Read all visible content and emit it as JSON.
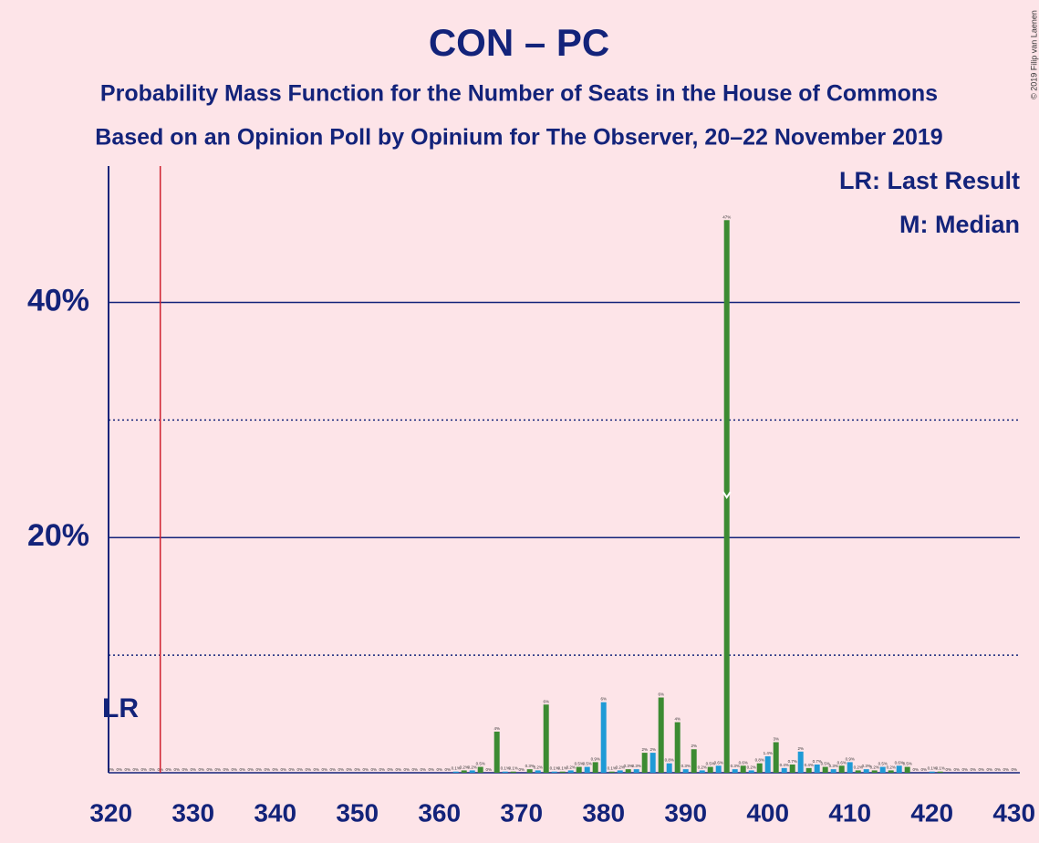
{
  "chart_data": {
    "type": "bar",
    "title": "CON – PC",
    "subtitle": "Probability Mass Function for the Number of Seats in the House of Commons",
    "subtitle2": "Based on an Opinion Poll by Opinium for The Observer, 20–22 November 2019",
    "credit": "© 2019 Filip van Laenen",
    "legend": [
      "LR: Last Result",
      "M: Median"
    ],
    "last_result": {
      "value": 326,
      "label": "LR",
      "color": "#d0202e"
    },
    "median": 395,
    "colors": [
      "#1e9ad6",
      "#3c8b32"
    ],
    "x": [
      320,
      321,
      322,
      323,
      324,
      325,
      326,
      327,
      328,
      329,
      330,
      331,
      332,
      333,
      334,
      335,
      336,
      337,
      338,
      339,
      340,
      341,
      342,
      343,
      344,
      345,
      346,
      347,
      348,
      349,
      350,
      351,
      352,
      353,
      354,
      355,
      356,
      357,
      358,
      359,
      360,
      361,
      362,
      363,
      364,
      365,
      366,
      367,
      368,
      369,
      370,
      371,
      372,
      373,
      374,
      375,
      376,
      377,
      378,
      379,
      380,
      381,
      382,
      383,
      384,
      385,
      386,
      387,
      388,
      389,
      390,
      391,
      392,
      393,
      394,
      395,
      396,
      397,
      398,
      399,
      400,
      401,
      402,
      403,
      404,
      405,
      406,
      407,
      408,
      409,
      410,
      411,
      412,
      413,
      414,
      415,
      416,
      417,
      418,
      419,
      420,
      421,
      422,
      423,
      424,
      425,
      426,
      427,
      428,
      429,
      430
    ],
    "values": [
      0,
      0,
      0,
      0,
      0,
      0,
      0,
      0,
      0,
      0,
      0,
      0,
      0,
      0,
      0,
      0,
      0,
      0,
      0,
      0,
      0,
      0,
      0,
      0,
      0,
      0,
      0,
      0,
      0,
      0,
      0,
      0,
      0,
      0,
      0,
      0,
      0,
      0,
      0,
      0,
      0,
      0,
      0.1,
      0.2,
      0.2,
      0.5,
      0,
      3.5,
      0.1,
      0.1,
      0,
      0.3,
      0.2,
      5.8,
      0.1,
      0.1,
      0.2,
      0.5,
      0.5,
      0.9,
      6,
      0.1,
      0.2,
      0.3,
      0.3,
      1.7,
      1.7,
      6.4,
      0.8,
      4.3,
      0.3,
      2,
      0.2,
      0.5,
      0.6,
      47,
      0.3,
      0.6,
      0.2,
      0.8,
      1.4,
      2.6,
      0.4,
      0.7,
      1.8,
      0.4,
      0.7,
      0.5,
      0.3,
      0.6,
      0.9,
      0.2,
      0.3,
      0.2,
      0.5,
      0.2,
      0.6,
      0.5,
      0,
      0,
      0.1,
      0.1,
      0,
      0,
      0,
      0,
      0,
      0,
      0,
      0,
      0
    ],
    "value_labels": [
      "0%",
      "0%",
      "0%",
      "0%",
      "0%",
      "0%",
      "0%",
      "0%",
      "0%",
      "0%",
      "0%",
      "0%",
      "0%",
      "0%",
      "0%",
      "0%",
      "0%",
      "0%",
      "0%",
      "0%",
      "0%",
      "0%",
      "0%",
      "0%",
      "0%",
      "0%",
      "0%",
      "0%",
      "0%",
      "0%",
      "0%",
      "0%",
      "0%",
      "0%",
      "0%",
      "0%",
      "0%",
      "0%",
      "0%",
      "0%",
      "0%",
      "0%",
      "0.1%",
      "0.2%",
      "0.2%",
      "0.5%",
      "0%",
      "4%",
      "0.1%",
      "0.1%",
      "0%",
      "0.3%",
      "0.2%",
      "6%",
      "0.1%",
      "0.1%",
      "0.2%",
      "0.5%",
      "0.5%",
      "0.9%",
      "6%",
      "0.1%",
      "0.2%",
      "0.3%",
      "0.3%",
      "2%",
      "2%",
      "6%",
      "0.8%",
      "4%",
      "0.3%",
      "2%",
      "0.2%",
      "0.5%",
      "0.6%",
      "47%",
      "0.3%",
      "0.6%",
      "0.2%",
      "0.8%",
      "1.4%",
      "3%",
      "0.4%",
      "0.7%",
      "2%",
      "0.4%",
      "0.7%",
      "0.5%",
      "0.3%",
      "0.6%",
      "0.9%",
      "0.2%",
      "0.3%",
      "0.2%",
      "0.5%",
      "0.2%",
      "0.6%",
      "0.5%",
      "0%",
      "0%",
      "0.1%",
      "0.1%",
      "0%",
      "0%",
      "0%",
      "0%",
      "0%",
      "0%",
      "0%",
      "0%",
      "0%"
    ],
    "xlim": [
      319.7,
      430.7
    ],
    "xticks": [
      320,
      330,
      340,
      350,
      360,
      370,
      380,
      390,
      400,
      410,
      420,
      430
    ],
    "ylim": [
      0,
      51.6
    ],
    "yticks": [
      {
        "value": 20,
        "label": "20%"
      },
      {
        "value": 40,
        "label": "40%"
      }
    ],
    "minor_yticks": [
      10,
      30
    ],
    "grid": true
  }
}
